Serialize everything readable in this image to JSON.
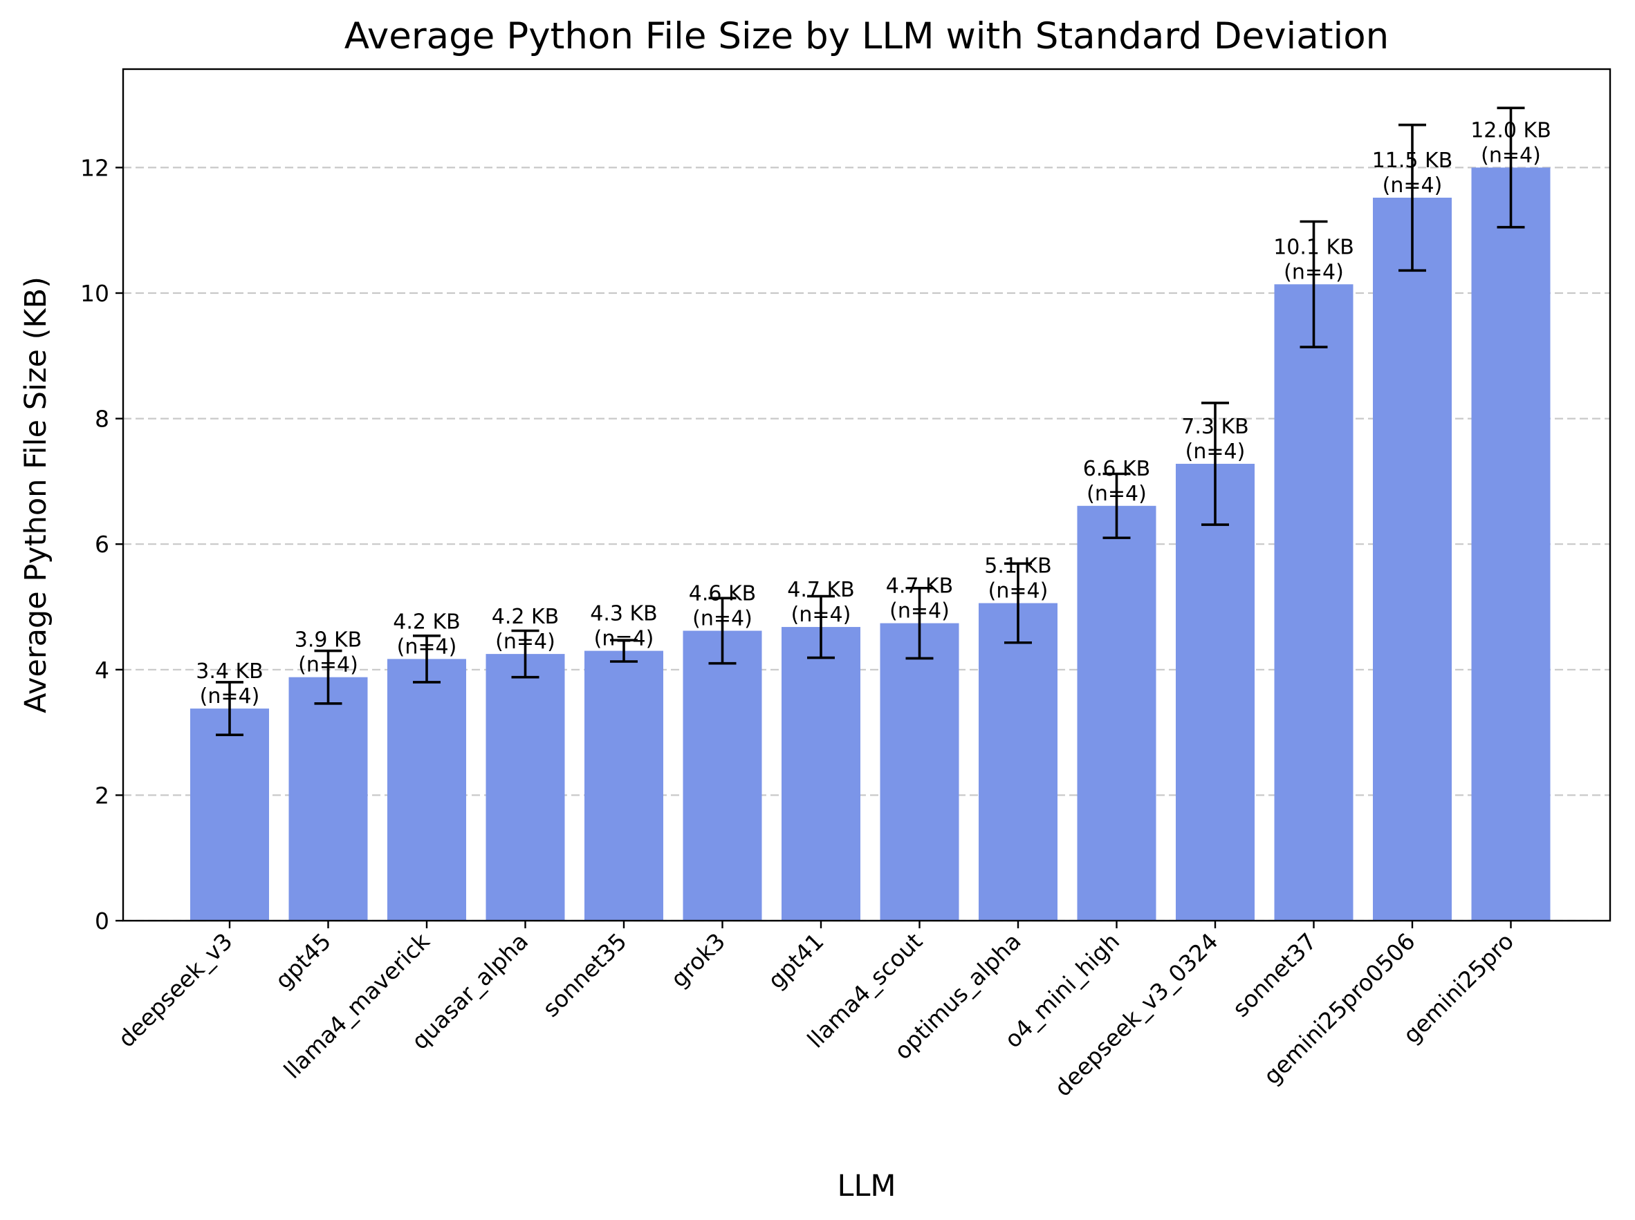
{
  "chart_data": {
    "type": "bar",
    "title": "Average Python File Size by LLM with Standard Deviation",
    "xlabel": "LLM",
    "ylabel": "Average Python File Size (KB)",
    "ylim": [
      0,
      13.6
    ],
    "yticks": [
      0,
      2,
      4,
      6,
      8,
      10,
      12
    ],
    "grid": "y-dashed",
    "bar_color": "#7b95e8",
    "categories": [
      "deepseek_v3",
      "gpt45",
      "llama4_maverick",
      "quasar_alpha",
      "sonnet35",
      "grok3",
      "gpt41",
      "llama4_scout",
      "optimus_alpha",
      "o4_mini_high",
      "deepseek_v3_0324",
      "sonnet37",
      "gemini25pro0506",
      "gemini25pro"
    ],
    "values": [
      3.38,
      3.88,
      4.17,
      4.25,
      4.3,
      4.62,
      4.68,
      4.74,
      5.06,
      6.61,
      7.28,
      10.14,
      11.52,
      12.0
    ],
    "std": [
      0.42,
      0.42,
      0.37,
      0.37,
      0.17,
      0.52,
      0.49,
      0.56,
      0.63,
      0.51,
      0.97,
      1.0,
      1.16,
      0.95
    ],
    "labels": [
      "3.4 KB\n(n=4)",
      "3.9 KB\n(n=4)",
      "4.2 KB\n(n=4)",
      "4.2 KB\n(n=4)",
      "4.3 KB\n(n=4)",
      "4.6 KB\n(n=4)",
      "4.7 KB\n(n=4)",
      "4.7 KB\n(n=4)",
      "5.1 KB\n(n=4)",
      "6.6 KB\n(n=4)",
      "7.3 KB\n(n=4)",
      "10.1 KB\n(n=4)",
      "11.5 KB\n(n=4)",
      "12.0 KB\n(n=4)"
    ]
  }
}
